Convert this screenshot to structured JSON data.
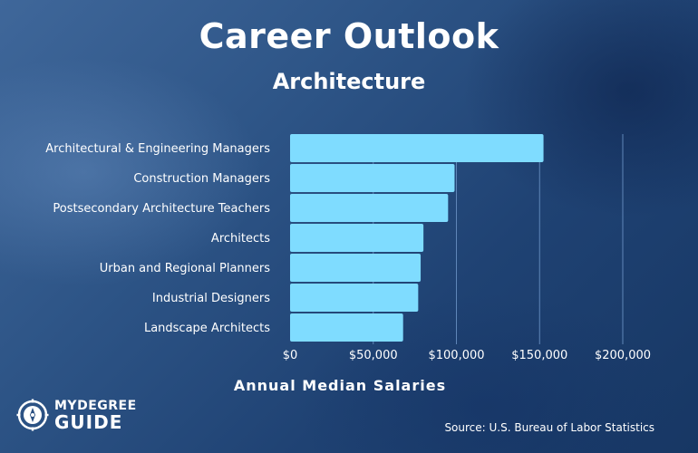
{
  "chart_data": {
    "type": "bar",
    "orientation": "horizontal",
    "title": "Career Outlook",
    "subtitle": "Architecture",
    "xlabel": "Annual Median Salaries",
    "ylabel": "",
    "categories": [
      "Architectural & Engineering Managers",
      "Construction Managers",
      "Postsecondary Architecture Teachers",
      "Architects",
      "Urban and Regional Planners",
      "Industrial Designers",
      "Landscape Architects"
    ],
    "values": [
      152350,
      98890,
      95000,
      80180,
      78500,
      77030,
      67950
    ],
    "xlim": [
      0,
      200000
    ],
    "xticks": [
      0,
      50000,
      100000,
      150000,
      200000
    ],
    "xtick_labels": [
      "$0",
      "$50,000",
      "$100,000",
      "$150,000",
      "$200,000"
    ],
    "grid": true,
    "bar_color": "#7fdcff",
    "grid_color": "#5f86b8"
  },
  "source": "Source: U.S. Bureau of Labor Statistics",
  "logo": {
    "line1": "MYDEGREE",
    "line2": "GUIDE",
    "icon": "compass-icon"
  }
}
